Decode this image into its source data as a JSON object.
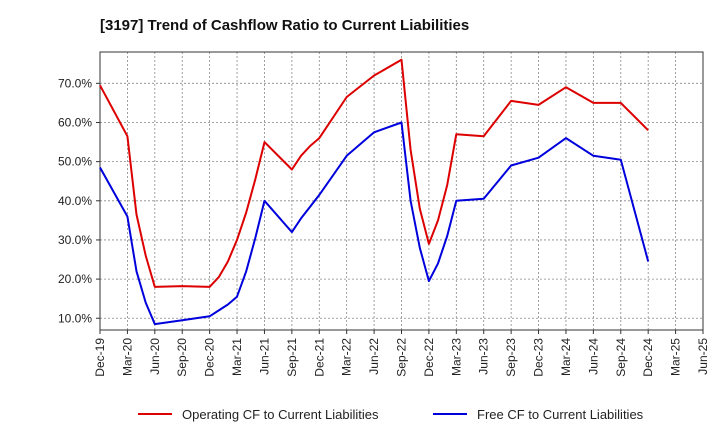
{
  "chart_data": {
    "type": "line",
    "title": "[3197]  Trend of Cashflow Ratio to Current Liabilities",
    "xlabel": "",
    "ylabel": "",
    "x_tick_labels": [
      "Dec-19",
      "Mar-20",
      "Jun-20",
      "Sep-20",
      "Dec-20",
      "Mar-21",
      "Jun-21",
      "Sep-21",
      "Dec-21",
      "Mar-22",
      "Jun-22",
      "Sep-22",
      "Dec-22",
      "Mar-23",
      "Jun-23",
      "Sep-23",
      "Dec-23",
      "Mar-24",
      "Jun-24",
      "Sep-24",
      "Dec-24",
      "Mar-25",
      "Jun-25"
    ],
    "y_tick_labels": [
      "10.0%",
      "20.0%",
      "30.0%",
      "40.0%",
      "50.0%",
      "60.0%",
      "70.0%"
    ],
    "y_ticks": [
      10,
      20,
      30,
      40,
      50,
      60,
      70
    ],
    "ylim": [
      7,
      78
    ],
    "grid": true,
    "legend_position": "bottom",
    "series": [
      {
        "name": "Operating CF to Current Liabilities",
        "color": "#dd0000",
        "x": [
          "Dec-19",
          "Mar-20",
          "Apr-20",
          "May-20",
          "Jun-20",
          "Sep-20",
          "Dec-20",
          "Jan-21",
          "Feb-21",
          "Mar-21",
          "Apr-21",
          "May-21",
          "Jun-21",
          "Sep-21",
          "Oct-21",
          "Nov-21",
          "Dec-21",
          "Mar-22",
          "Jun-22",
          "Sep-22",
          "Oct-22",
          "Nov-22",
          "Dec-22",
          "Jan-23",
          "Feb-23",
          "Mar-23",
          "Jun-23",
          "Sep-23",
          "Dec-23",
          "Mar-24",
          "Jun-24",
          "Sep-24",
          "Dec-24"
        ],
        "values": [
          69.5,
          56.5,
          36.5,
          26,
          18,
          18.2,
          18,
          20.5,
          24.5,
          30,
          37,
          45.5,
          55,
          48,
          51.5,
          54,
          56,
          66.5,
          72,
          76,
          53,
          38,
          29,
          35,
          44,
          57,
          56.5,
          65.5,
          64.5,
          69,
          65,
          65,
          58
        ]
      },
      {
        "name": "Free CF to Current Liabilities",
        "color": "#0000dd",
        "x": [
          "Dec-19",
          "Mar-20",
          "Apr-20",
          "May-20",
          "Jun-20",
          "Sep-20",
          "Dec-20",
          "Jan-21",
          "Feb-21",
          "Mar-21",
          "Apr-21",
          "May-21",
          "Jun-21",
          "Sep-21",
          "Oct-21",
          "Nov-21",
          "Dec-21",
          "Mar-22",
          "Jun-22",
          "Sep-22",
          "Oct-22",
          "Nov-22",
          "Dec-22",
          "Jan-23",
          "Feb-23",
          "Mar-23",
          "Jun-23",
          "Sep-23",
          "Dec-23",
          "Mar-24",
          "Jun-24",
          "Sep-24",
          "Dec-24"
        ],
        "values": [
          48.5,
          36,
          22,
          14,
          8.5,
          9.5,
          10.5,
          12,
          13.5,
          15.5,
          22,
          30.5,
          40,
          32,
          35.5,
          38.5,
          41.5,
          51.5,
          57.5,
          60,
          40,
          28,
          19.5,
          24,
          31,
          40,
          40.5,
          49,
          51,
          56,
          51.5,
          50.5,
          24.5
        ]
      }
    ]
  }
}
